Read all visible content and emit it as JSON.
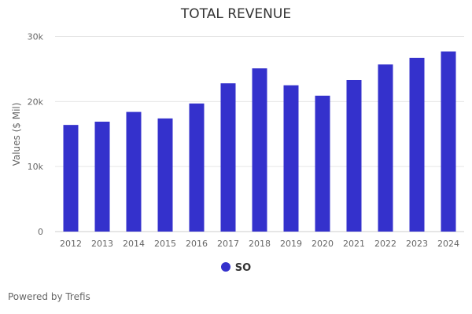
{
  "chart_data": {
    "type": "bar",
    "title": "TOTAL REVENUE",
    "xlabel": "",
    "ylabel": "Values ($ Mil)",
    "ylim": [
      0,
      30000
    ],
    "yticks": [
      {
        "v": 0,
        "label": "0"
      },
      {
        "v": 10000,
        "label": "10k"
      },
      {
        "v": 20000,
        "label": "20k"
      },
      {
        "v": 30000,
        "label": "30k"
      }
    ],
    "categories": [
      "2012",
      "2013",
      "2014",
      "2015",
      "2016",
      "2017",
      "2018",
      "2019",
      "2020",
      "2021",
      "2022",
      "2023",
      "2024"
    ],
    "series": [
      {
        "name": "SO",
        "color": "#3431cc",
        "values": [
          16400,
          16900,
          18400,
          17400,
          19700,
          22800,
          25100,
          22500,
          20900,
          23300,
          25700,
          26700,
          27700
        ]
      }
    ],
    "legend": "bottom-center",
    "grid": true
  },
  "footer": {
    "credit": "Powered by Trefis"
  }
}
